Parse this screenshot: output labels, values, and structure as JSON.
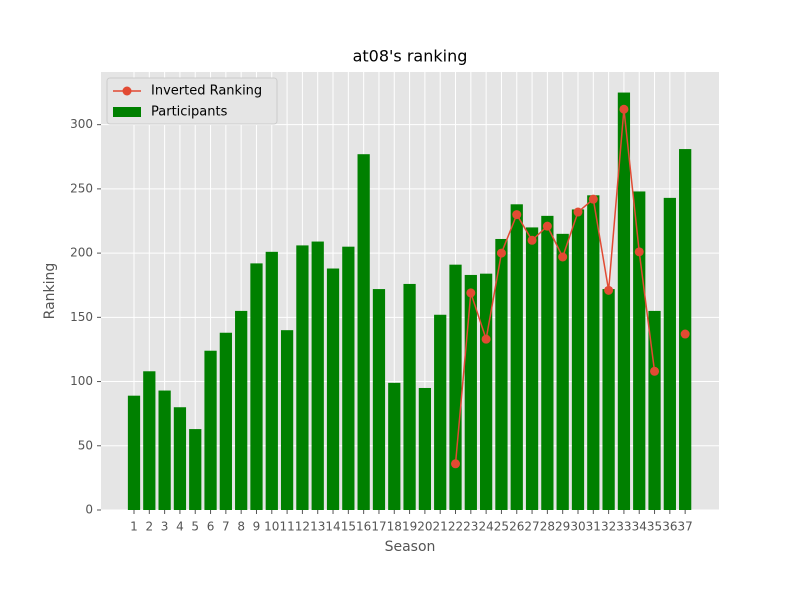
{
  "chart_data": {
    "type": "bar_line",
    "title": "at08's ranking",
    "x_label": "Season",
    "y_label": "Ranking",
    "categories": [
      "1",
      "2",
      "3",
      "4",
      "5",
      "6",
      "7",
      "8",
      "9",
      "10",
      "11",
      "12",
      "13",
      "14",
      "15",
      "16",
      "17",
      "18",
      "19",
      "20",
      "21",
      "22",
      "23",
      "24",
      "25",
      "26",
      "27",
      "28",
      "29",
      "30",
      "31",
      "32",
      "33",
      "34",
      "35",
      "36",
      "37"
    ],
    "series": [
      {
        "name": "Inverted Ranking",
        "type": "line",
        "color": "#e24a33",
        "values": [
          null,
          null,
          null,
          null,
          null,
          null,
          null,
          null,
          null,
          null,
          null,
          null,
          null,
          null,
          null,
          null,
          null,
          null,
          null,
          null,
          null,
          36,
          169,
          133,
          200,
          230,
          210,
          221,
          197,
          232,
          242,
          171,
          312,
          201,
          108,
          null,
          137
        ]
      },
      {
        "name": "Participants",
        "type": "bar",
        "color": "#008000",
        "values": [
          89,
          108,
          93,
          80,
          63,
          124,
          138,
          155,
          192,
          201,
          140,
          206,
          209,
          188,
          205,
          277,
          172,
          99,
          176,
          95,
          152,
          191,
          183,
          184,
          211,
          238,
          220,
          229,
          215,
          234,
          245,
          172,
          325,
          248,
          155,
          243,
          281
        ]
      }
    ],
    "ylim": [
      0,
      341
    ],
    "yticks": [
      0,
      50,
      100,
      150,
      200,
      250,
      300
    ],
    "grid": true,
    "legend": "upper left"
  }
}
